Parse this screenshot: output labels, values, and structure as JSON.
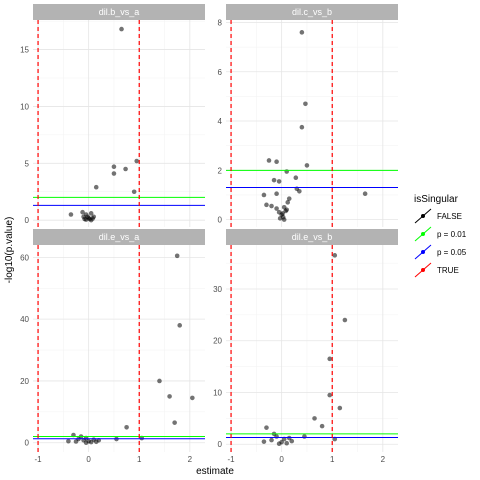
{
  "chart_data": {
    "type": "scatter",
    "xlabel": "estimate",
    "ylabel": "-log10(p.value)",
    "legend": {
      "title": "isSingular",
      "position": "right",
      "entries": [
        {
          "label": "FALSE",
          "color": "#000000"
        },
        {
          "label": "p = 0.01",
          "color": "#00ff00"
        },
        {
          "label": "p = 0.05",
          "color": "#0000ff"
        },
        {
          "label": "TRUE",
          "color": "#ff0000"
        }
      ]
    },
    "vlines": [
      -1,
      1
    ],
    "hlines": [
      {
        "value": 2,
        "color": "#00ff00"
      },
      {
        "value": 1.301,
        "color": "#0000ff"
      }
    ],
    "xlim": [
      -1.1,
      2.3
    ],
    "xticks": [
      -1,
      0,
      1,
      2
    ],
    "grid": true,
    "panels": [
      {
        "title": "dil.b_vs_a",
        "ylim": [
          -0.6,
          17.6
        ],
        "yticks": [
          0,
          5,
          10,
          15
        ],
        "points": [
          [
            0.65,
            16.8
          ],
          [
            0.95,
            5.2
          ],
          [
            0.5,
            4.7
          ],
          [
            0.73,
            4.5
          ],
          [
            0.5,
            4.1
          ],
          [
            0.15,
            2.9
          ],
          [
            0.9,
            2.5
          ],
          [
            -0.35,
            0.5
          ],
          [
            -0.12,
            0.7
          ],
          [
            -0.05,
            0.5
          ],
          [
            0.05,
            0.6
          ],
          [
            0.1,
            0.3
          ],
          [
            -0.1,
            0.3
          ],
          [
            0.0,
            0.2
          ],
          [
            -0.05,
            0.05
          ],
          [
            0.02,
            0.1
          ],
          [
            0.08,
            0.15
          ],
          [
            -0.08,
            0.1
          ],
          [
            0.05,
            0.0
          ],
          [
            -0.02,
            0.3
          ]
        ]
      },
      {
        "title": "dil.c_vs_b",
        "ylim": [
          -0.3,
          8.1
        ],
        "yticks": [
          0,
          2,
          4,
          6,
          8
        ],
        "points": [
          [
            0.4,
            7.6
          ],
          [
            0.47,
            4.7
          ],
          [
            0.4,
            3.75
          ],
          [
            -0.25,
            2.4
          ],
          [
            -0.1,
            2.35
          ],
          [
            0.5,
            2.2
          ],
          [
            0.1,
            1.95
          ],
          [
            0.28,
            1.7
          ],
          [
            -0.15,
            1.6
          ],
          [
            -0.05,
            1.55
          ],
          [
            0.3,
            1.25
          ],
          [
            0.35,
            1.15
          ],
          [
            -0.35,
            1.0
          ],
          [
            -0.1,
            1.05
          ],
          [
            1.65,
            1.05
          ],
          [
            0.15,
            0.85
          ],
          [
            -0.3,
            0.6
          ],
          [
            -0.2,
            0.55
          ],
          [
            -0.1,
            0.45
          ],
          [
            0.05,
            0.5
          ],
          [
            0.1,
            0.4
          ],
          [
            -0.05,
            0.3
          ],
          [
            0.0,
            0.2
          ],
          [
            0.03,
            0.1
          ],
          [
            -0.03,
            0.05
          ],
          [
            0.05,
            0.0
          ],
          [
            0.02,
            0.25
          ],
          [
            0.12,
            0.7
          ],
          [
            0.08,
            0.35
          ]
        ]
      },
      {
        "title": "dil.e_vs_a",
        "ylim": [
          -3,
          64
        ],
        "yticks": [
          0,
          20,
          40,
          60
        ],
        "points": [
          [
            1.75,
            60.5
          ],
          [
            1.8,
            38.0
          ],
          [
            1.4,
            20.0
          ],
          [
            1.6,
            15.0
          ],
          [
            2.05,
            14.5
          ],
          [
            1.7,
            6.5
          ],
          [
            0.75,
            5.0
          ],
          [
            -0.3,
            2.5
          ],
          [
            -0.15,
            2.0
          ],
          [
            -0.05,
            1.5
          ],
          [
            0.1,
            1.0
          ],
          [
            0.55,
            1.2
          ],
          [
            1.05,
            1.5
          ],
          [
            -0.4,
            0.5
          ],
          [
            -0.1,
            0.8
          ],
          [
            0.0,
            0.5
          ],
          [
            0.05,
            0.2
          ],
          [
            -0.05,
            0.0
          ],
          [
            0.15,
            0.3
          ],
          [
            0.2,
            0.8
          ],
          [
            -0.2,
            1.2
          ],
          [
            -0.25,
            0.4
          ]
        ]
      },
      {
        "title": "dil.e_vs_b",
        "ylim": [
          -1.5,
          38.5
        ],
        "yticks": [
          0,
          10,
          20,
          30
        ],
        "points": [
          [
            1.05,
            36.5
          ],
          [
            1.25,
            24.0
          ],
          [
            0.95,
            16.5
          ],
          [
            0.95,
            9.5
          ],
          [
            1.15,
            7.0
          ],
          [
            0.65,
            5.0
          ],
          [
            0.8,
            3.5
          ],
          [
            -0.3,
            3.2
          ],
          [
            0.45,
            1.5
          ],
          [
            1.05,
            1.0
          ],
          [
            -0.15,
            2.0
          ],
          [
            -0.1,
            1.5
          ],
          [
            0.05,
            1.0
          ],
          [
            -0.35,
            0.5
          ],
          [
            0.0,
            0.4
          ],
          [
            0.1,
            0.2
          ],
          [
            0.2,
            0.6
          ],
          [
            -0.05,
            0.1
          ],
          [
            0.15,
            1.2
          ],
          [
            -0.2,
            0.8
          ]
        ]
      }
    ]
  }
}
